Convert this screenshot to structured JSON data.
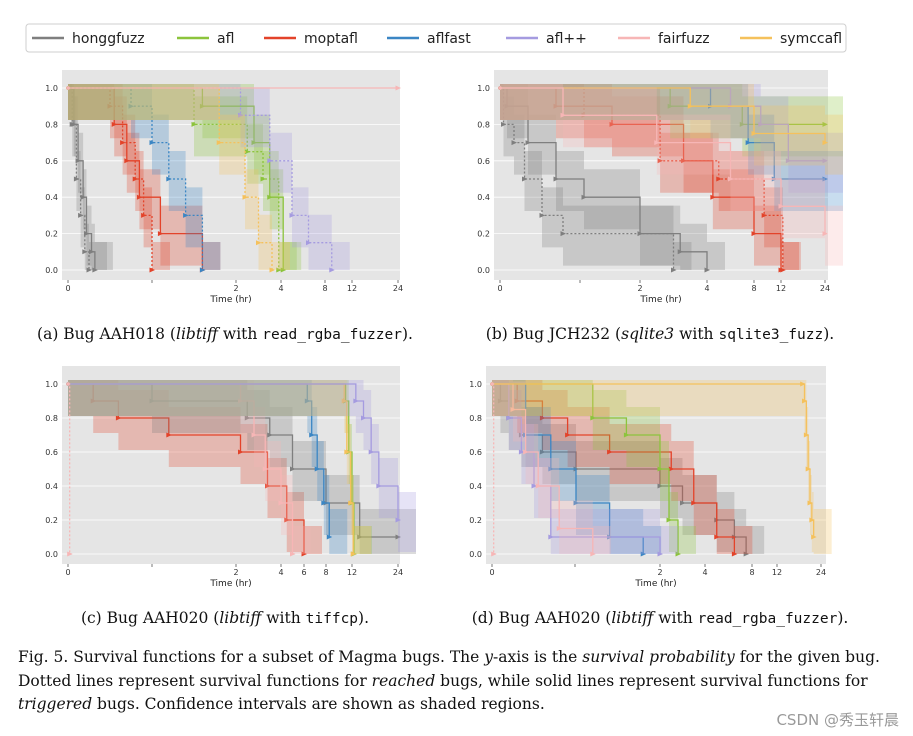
{
  "legend": [
    {
      "name": "honggfuzz",
      "color": "#7f7f7f"
    },
    {
      "name": "afl",
      "color": "#8cc43c"
    },
    {
      "name": "moptafl",
      "color": "#e3432a"
    },
    {
      "name": "aflfast",
      "color": "#3b86c4"
    },
    {
      "name": "afl++",
      "color": "#a59be0"
    },
    {
      "name": "fairfuzz",
      "color": "#f7b6b6"
    },
    {
      "name": "symccafl",
      "color": "#f5c15c"
    }
  ],
  "subfigures": [
    {
      "label": "(a) Bug AAH018 (",
      "program": "libtiff",
      "mid": " with ",
      "driver": "read_rgba_fuzzer",
      "end": ")."
    },
    {
      "label": "(b) Bug JCH232 (",
      "program": "sqlite3",
      "mid": " with ",
      "driver": "sqlite3_fuzz",
      "end": ")."
    },
    {
      "label": "(c) Bug AAH020 (",
      "program": "libtiff",
      "mid": " with ",
      "driver": "tiffcp",
      "end": ")."
    },
    {
      "label": "(d) Bug AAH020 (",
      "program": "libtiff",
      "mid": " with ",
      "driver": "read_rgba_fuzzer",
      "end": ")."
    }
  ],
  "caption": {
    "fig": "Fig. 5.",
    "t1": "  Survival functions for a subset of Magma bugs. The ",
    "yaxis": "y",
    "t2": "-axis is the ",
    "surv": "survival probability",
    "t3": " for the given bug. Dotted lines represent survival functions for ",
    "reached": "reached",
    "t4": " bugs, while solid lines represent survival functions for ",
    "triggered": "triggered",
    "t5": " bugs. Confidence intervals are shown as shaded regions."
  },
  "watermark": "CSDN @秀玉轩晨",
  "chart_data": [
    {
      "type": "line",
      "subtitle": "Bug AAH018",
      "xlabel": "Time (hr)",
      "x_ticks": [
        "0",
        "2",
        "4",
        "8",
        "12",
        "24"
      ],
      "y_ticks": [
        "0.0",
        "0.2",
        "0.4",
        "0.6",
        "0.8",
        "1.0"
      ],
      "xlim": [
        0,
        24
      ],
      "ylim": [
        0,
        1
      ],
      "series": [
        {
          "name": "honggfuzz",
          "kind": "reached",
          "x": [
            0,
            0.05,
            0.1,
            0.15,
            0.2,
            0.25
          ],
          "y": [
            1,
            0.8,
            0.5,
            0.3,
            0.1,
            0
          ]
        },
        {
          "name": "honggfuzz",
          "kind": "triggered",
          "x": [
            0,
            0.07,
            0.12,
            0.18,
            0.22,
            0.28,
            0.32
          ],
          "y": [
            1,
            0.8,
            0.6,
            0.4,
            0.2,
            0.1,
            0
          ]
        },
        {
          "name": "moptafl",
          "kind": "reached",
          "x": [
            0,
            0.5,
            0.65,
            0.8,
            0.9,
            1.0
          ],
          "y": [
            1,
            0.9,
            0.7,
            0.5,
            0.3,
            0
          ]
        },
        {
          "name": "moptafl",
          "kind": "triggered",
          "x": [
            0,
            0.55,
            0.7,
            0.85,
            1.1,
            1.6
          ],
          "y": [
            1,
            0.8,
            0.6,
            0.4,
            0.2,
            0
          ]
        },
        {
          "name": "aflfast",
          "kind": "reached",
          "x": [
            0,
            0.75,
            1.0,
            1.2,
            1.4,
            1.6
          ],
          "y": [
            1,
            0.9,
            0.7,
            0.5,
            0.3,
            0
          ]
        },
        {
          "name": "afl",
          "kind": "reached",
          "x": [
            0,
            1.5,
            2.5,
            3.2,
            3.9
          ],
          "y": [
            1,
            0.8,
            0.65,
            0.5,
            0
          ]
        },
        {
          "name": "afl",
          "kind": "triggered",
          "x": [
            0,
            1.6,
            2.8,
            3.5,
            4.2
          ],
          "y": [
            1,
            0.9,
            0.7,
            0.4,
            0
          ]
        },
        {
          "name": "afl++",
          "kind": "reached",
          "x": [
            0,
            2.2,
            3.5,
            5.0,
            6.5,
            9.0
          ],
          "y": [
            1,
            0.85,
            0.6,
            0.3,
            0.15,
            0
          ]
        },
        {
          "name": "symccafl",
          "kind": "reached",
          "x": [
            0,
            1.8,
            2.4,
            3.0,
            3.6
          ],
          "y": [
            1,
            0.7,
            0.4,
            0.15,
            0
          ]
        },
        {
          "name": "fairfuzz",
          "kind": "triggered",
          "x": [
            0,
            24
          ],
          "y": [
            1,
            1
          ]
        }
      ]
    },
    {
      "type": "line",
      "subtitle": "Bug JCH232",
      "xlabel": "Time (hr)",
      "x_ticks": [
        "0",
        "2",
        "4",
        "8",
        "12",
        "24"
      ],
      "y_ticks": [
        "0.0",
        "0.2",
        "0.4",
        "0.6",
        "0.8",
        "1.0"
      ],
      "xlim": [
        0,
        24
      ],
      "ylim": [
        0,
        1
      ],
      "series": [
        {
          "name": "honggfuzz",
          "kind": "reached",
          "x": [
            0,
            0.05,
            0.2,
            0.35,
            0.6,
            0.9,
            3.0
          ],
          "y": [
            1,
            0.8,
            0.7,
            0.5,
            0.3,
            0.2,
            0
          ]
        },
        {
          "name": "honggfuzz",
          "kind": "triggered",
          "x": [
            0,
            0.1,
            0.4,
            0.8,
            1.2,
            2.0,
            3.2,
            4.0
          ],
          "y": [
            1,
            0.9,
            0.7,
            0.5,
            0.4,
            0.2,
            0.1,
            0
          ]
        },
        {
          "name": "moptafl",
          "kind": "triggered",
          "x": [
            0,
            0.8,
            1.6,
            3.3,
            4.5,
            8.0,
            12.0
          ],
          "y": [
            1,
            0.9,
            0.8,
            0.6,
            0.4,
            0.2,
            0
          ]
        },
        {
          "name": "moptafl",
          "kind": "reached",
          "x": [
            0,
            1.2,
            2.6,
            5.0,
            9.5,
            12.5
          ],
          "y": [
            1,
            0.85,
            0.6,
            0.5,
            0.3,
            0
          ]
        },
        {
          "name": "afl",
          "kind": "triggered",
          "x": [
            0,
            2.9,
            7.0,
            24
          ],
          "y": [
            1,
            0.9,
            0.8,
            0.8
          ]
        },
        {
          "name": "aflfast",
          "kind": "triggered",
          "x": [
            0,
            4.3,
            7.5,
            11.0,
            24
          ],
          "y": [
            1,
            0.9,
            0.7,
            0.5,
            0.5
          ]
        },
        {
          "name": "afl++",
          "kind": "triggered",
          "x": [
            0,
            6.0,
            9.0,
            14.0,
            24
          ],
          "y": [
            1,
            0.9,
            0.8,
            0.6,
            0.6
          ]
        },
        {
          "name": "symccafl",
          "kind": "triggered",
          "x": [
            0,
            3.5,
            8.0,
            24
          ],
          "y": [
            1,
            0.9,
            0.75,
            0.7
          ]
        },
        {
          "name": "fairfuzz",
          "kind": "triggered",
          "x": [
            0,
            0.9,
            2.5,
            6.0,
            12.0,
            24
          ],
          "y": [
            1,
            0.85,
            0.7,
            0.5,
            0.35,
            0.2
          ]
        }
      ]
    },
    {
      "type": "line",
      "subtitle": "Bug AAH020",
      "xlabel": "Time (hr)",
      "x_ticks": [
        "0",
        "2",
        "4",
        "6",
        "8",
        "12",
        "24"
      ],
      "y_ticks": [
        "0.0",
        "0.2",
        "0.4",
        "0.6",
        "0.8",
        "1.0"
      ],
      "xlim": [
        0,
        24
      ],
      "ylim": [
        0,
        1
      ],
      "series": [
        {
          "name": "moptafl",
          "kind": "triggered",
          "x": [
            0,
            0.3,
            0.6,
            1.2,
            2.2,
            3.4,
            4.5,
            6.0
          ],
          "y": [
            1,
            0.9,
            0.8,
            0.7,
            0.6,
            0.4,
            0.2,
            0
          ]
        },
        {
          "name": "honggfuzz",
          "kind": "triggered",
          "x": [
            0,
            1.0,
            2.5,
            3.5,
            5.0,
            8.0,
            14.0,
            24
          ],
          "y": [
            1,
            0.9,
            0.8,
            0.7,
            0.5,
            0.3,
            0.1,
            0.1
          ]
        },
        {
          "name": "fairfuzz",
          "kind": "triggered",
          "x": [
            0,
            2.2,
            2.8,
            3.3,
            4.0,
            5.0
          ],
          "y": [
            1,
            0.9,
            0.7,
            0.5,
            0.3,
            0
          ]
        },
        {
          "name": "aflfast",
          "kind": "triggered",
          "x": [
            0,
            6.3,
            6.7,
            7.2,
            7.8,
            8.5
          ],
          "y": [
            1,
            0.9,
            0.7,
            0.5,
            0.3,
            0.1
          ]
        },
        {
          "name": "afl",
          "kind": "triggered",
          "x": [
            0,
            11.0,
            11.5,
            12.0,
            12.5
          ],
          "y": [
            1,
            0.9,
            0.6,
            0.3,
            0
          ]
        },
        {
          "name": "symccafl",
          "kind": "triggered",
          "x": [
            0,
            10.8,
            11.2,
            11.8,
            12.3
          ],
          "y": [
            1,
            0.9,
            0.6,
            0.3,
            0
          ]
        },
        {
          "name": "afl++",
          "kind": "triggered",
          "x": [
            0,
            13.0,
            15.0,
            17.0,
            19.0,
            24
          ],
          "y": [
            1,
            0.9,
            0.8,
            0.6,
            0.4,
            0.2
          ]
        },
        {
          "name": "fairfuzz",
          "kind": "reached",
          "x": [
            0,
            0.02
          ],
          "y": [
            1,
            0
          ]
        }
      ]
    },
    {
      "type": "line",
      "subtitle": "Bug AAH020",
      "xlabel": "Time (hr)",
      "x_ticks": [
        "0",
        "2",
        "4",
        "8",
        "12",
        "24"
      ],
      "y_ticks": [
        "0.0",
        "0.2",
        "0.4",
        "0.6",
        "0.8",
        "1.0"
      ],
      "xlim": [
        0,
        24
      ],
      "ylim": [
        0,
        1
      ],
      "series": [
        {
          "name": "honggfuzz",
          "kind": "triggered",
          "x": [
            0,
            0.1,
            0.2,
            0.35,
            0.6,
            1.0,
            2.0,
            3.0,
            5.0,
            6.5,
            7.5
          ],
          "y": [
            1,
            0.9,
            0.8,
            0.7,
            0.6,
            0.5,
            0.4,
            0.3,
            0.2,
            0.1,
            0
          ]
        },
        {
          "name": "moptafl",
          "kind": "triggered",
          "x": [
            0,
            0.3,
            0.6,
            0.9,
            1.4,
            2.5,
            3.5,
            5.0,
            6.5
          ],
          "y": [
            1,
            0.9,
            0.8,
            0.7,
            0.6,
            0.5,
            0.3,
            0.1,
            0
          ]
        },
        {
          "name": "afl",
          "kind": "triggered",
          "x": [
            0,
            1.2,
            1.6,
            2.0,
            2.4,
            2.8
          ],
          "y": [
            1,
            0.8,
            0.7,
            0.5,
            0.2,
            0
          ]
        },
        {
          "name": "aflfast",
          "kind": "triggered",
          "x": [
            0,
            0.4,
            0.7,
            1.0,
            1.4,
            1.8
          ],
          "y": [
            1,
            0.7,
            0.5,
            0.3,
            0.1,
            0
          ]
        },
        {
          "name": "afl++",
          "kind": "triggered",
          "x": [
            0,
            0.2,
            0.35,
            0.5,
            0.7,
            2.0
          ],
          "y": [
            1,
            0.8,
            0.6,
            0.4,
            0.1,
            0
          ]
        },
        {
          "name": "fairfuzz",
          "kind": "triggered",
          "x": [
            0,
            0.25,
            0.4,
            0.55,
            0.8,
            1.2
          ],
          "y": [
            1,
            0.85,
            0.6,
            0.4,
            0.15,
            0
          ]
        },
        {
          "name": "symccafl",
          "kind": "triggered",
          "x": [
            0,
            19.0,
            19.5,
            20.0,
            20.5,
            21.0,
            21.5,
            22.0
          ],
          "y": [
            1,
            1,
            0.9,
            0.7,
            0.5,
            0.3,
            0.2,
            0.1
          ]
        },
        {
          "name": "fairfuzz",
          "kind": "reached",
          "x": [
            0,
            0.02
          ],
          "y": [
            1,
            0
          ]
        }
      ]
    }
  ]
}
